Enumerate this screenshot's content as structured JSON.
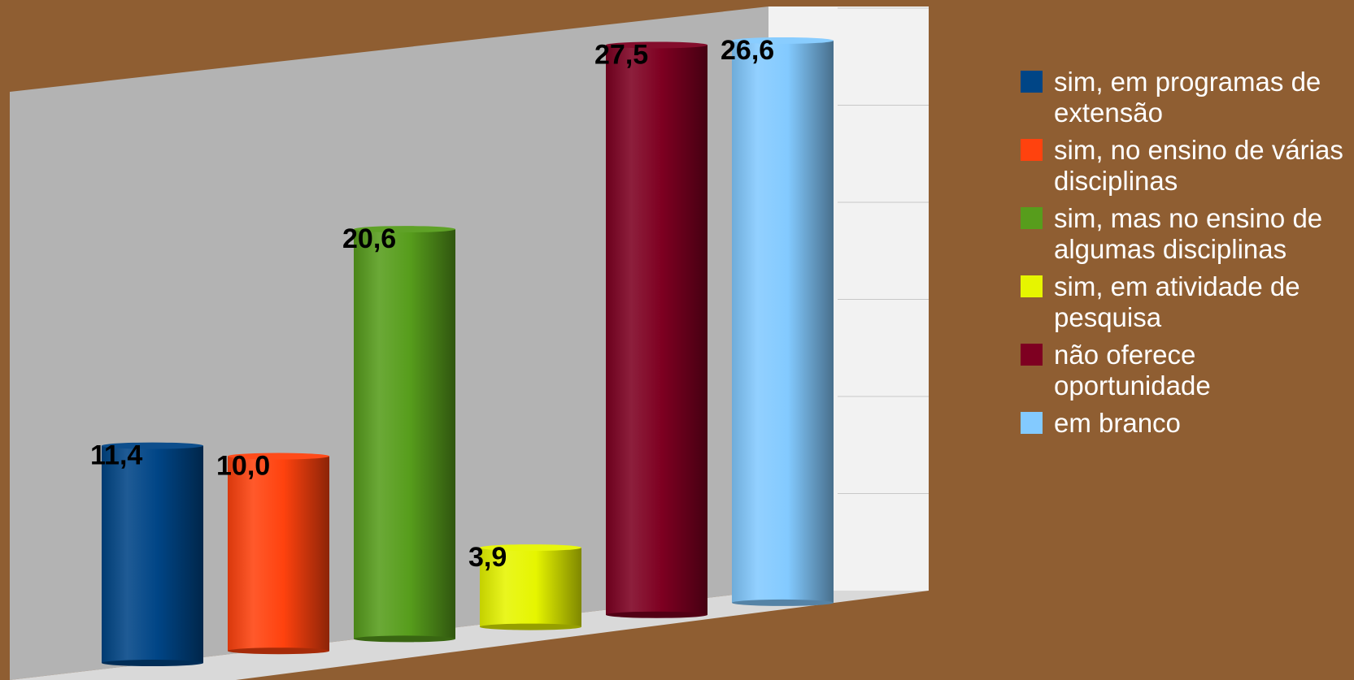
{
  "chart_data": {
    "type": "bar",
    "categories": [
      "sim, em programas de extensão",
      "sim, no ensino de várias disciplinas",
      "sim, mas no ensino de algumas disciplinas",
      "sim, em atividade de pesquisa",
      "não oferece oportunidade",
      "em branco"
    ],
    "values": [
      11.4,
      10.0,
      20.6,
      3.9,
      27.5,
      26.6
    ],
    "data_labels": [
      "11,4",
      "10,0",
      "20,6",
      "3,9",
      "27,5",
      "26,6"
    ],
    "title": "",
    "xlabel": "",
    "ylabel": "",
    "ylim": [
      0,
      30
    ],
    "grid": true,
    "legend_position": "right",
    "three_d": true,
    "colors": {
      "background": "#8f5e32",
      "wall": "#b3b3b3",
      "side_wall": "#f2f2f2",
      "series": [
        "#004586",
        "#ff420e",
        "#579d1c",
        "#e6f500",
        "#7e0021",
        "#83caff"
      ]
    }
  },
  "legend": {
    "items": [
      {
        "label": "sim, em programas de extensão",
        "color": "#004586"
      },
      {
        "label": "sim, no ensino de várias disciplinas",
        "color": "#ff420e"
      },
      {
        "label": "sim, mas no ensino de algumas disciplinas",
        "color": "#579d1c"
      },
      {
        "label": "sim, em atividade de pesquisa",
        "color": "#e6f500"
      },
      {
        "label": "não oferece oportunidade",
        "color": "#7e0021"
      },
      {
        "label": "em branco",
        "color": "#83caff"
      }
    ]
  }
}
